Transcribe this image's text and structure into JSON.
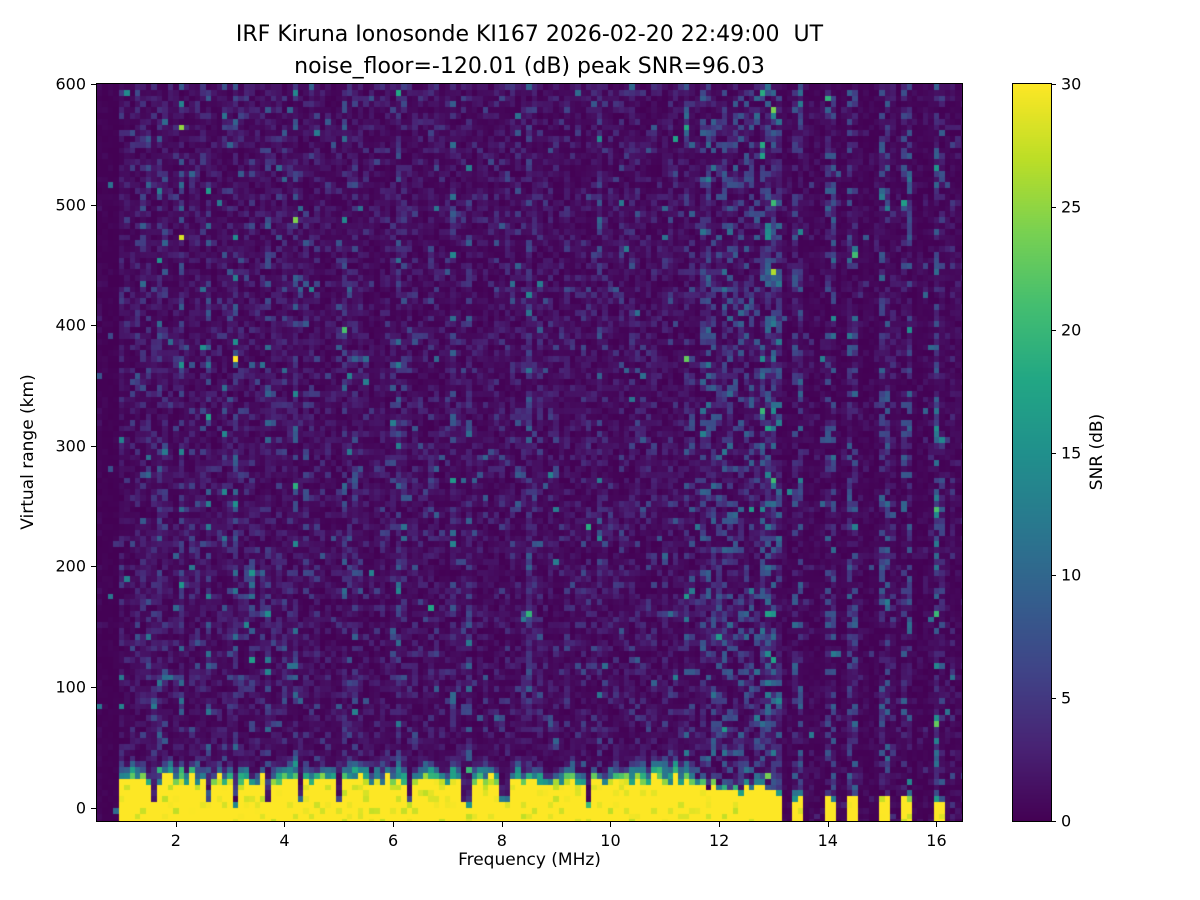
{
  "figure": {
    "title_line1": "IRF Kiruna Ionosonde KI167 2026-02-20 22:49:00  UT",
    "title_line2": "noise_floor=-120.01 (dB) peak SNR=96.03",
    "xlabel": "Frequency (MHz)",
    "ylabel": "Virtual range (km)",
    "colorbar_label": "SNR (dB)"
  },
  "chart_data": {
    "type": "heatmap",
    "title": "IRF Kiruna Ionosonde KI167 2026-02-20 22:49:00  UT\nnoise_floor=-120.01 (dB) peak SNR=96.03",
    "station": "KI167",
    "site": "IRF Kiruna Ionosonde",
    "timestamp_ut": "2026-02-20 22:49:00",
    "noise_floor_db": -120.01,
    "peak_snr_db": 96.03,
    "xlabel": "Frequency (MHz)",
    "ylabel": "Virtual range (km)",
    "xlim": [
      0.55,
      16.47
    ],
    "ylim": [
      -11,
      600
    ],
    "x_ticks": [
      2,
      4,
      6,
      8,
      10,
      12,
      14,
      16
    ],
    "y_ticks": [
      0,
      100,
      200,
      300,
      400,
      500,
      600
    ],
    "colormap": "viridis",
    "colorbar": {
      "label": "SNR (dB)",
      "range": [
        0,
        30
      ],
      "ticks": [
        0,
        5,
        10,
        15,
        20,
        25,
        30
      ]
    },
    "sweep_freq_range_mhz": [
      1.0,
      16.4
    ],
    "features": {
      "background_noise_mean_db": 1.4,
      "ground_clutter_band": {
        "freq_start_mhz": 1.0,
        "freq_end_mhz": 11.57,
        "yellow_top_km_mean": 26,
        "snr_db": 30,
        "fuzz_top_km_max": 48
      },
      "ground_stripe_freqs_mhz": [
        11.65,
        11.8,
        11.95,
        12.1,
        12.25,
        12.4,
        12.55,
        12.75,
        12.95,
        13.1,
        13.45,
        14.05,
        14.45,
        15.05,
        15.45,
        16.05
      ],
      "notch_freqs_mhz": [
        1.6,
        2.6,
        3.1,
        3.7,
        4.3,
        5.0,
        6.3,
        7.35,
        8.05,
        9.6
      ],
      "echo_streak": {
        "freq_range_mhz": [
          1.35,
          4.65
        ],
        "range_km": [
          102,
          114
        ]
      },
      "blob": {
        "freq_range_mhz": [
          3.3,
          3.8
        ],
        "range_km": [
          160,
          220
        ]
      },
      "rfi_quiet_above_mhz": 11.6
    },
    "seed": 20260220
  }
}
